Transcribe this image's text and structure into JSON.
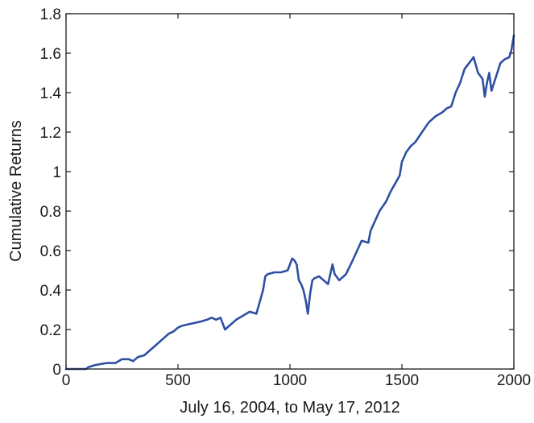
{
  "chart_data": {
    "type": "line",
    "xlabel": "July 16, 2004, to May 17, 2012",
    "ylabel": "Cumulative Returns",
    "xlim": [
      0,
      2000
    ],
    "ylim": [
      0,
      1.8
    ],
    "xticks": [
      0,
      500,
      1000,
      1500,
      2000
    ],
    "xtick_labels": [
      "0",
      "500",
      "1000",
      "1500",
      "2000"
    ],
    "yticks": [
      0,
      0.2,
      0.4,
      0.6,
      0.8,
      1,
      1.2,
      1.4,
      1.6,
      1.8
    ],
    "ytick_labels": [
      "0",
      "0.2",
      "0.4",
      "0.6",
      "0.8",
      "1",
      "1.2",
      "1.4",
      "1.6",
      "1.8"
    ],
    "grid": false,
    "colors": {
      "line": "#2f4fa3"
    },
    "series": [
      {
        "x": [
          0,
          90,
          100,
          130,
          180,
          220,
          250,
          280,
          300,
          320,
          350,
          380,
          400,
          430,
          460,
          480,
          500,
          520,
          560,
          600,
          630,
          650,
          670,
          690,
          710,
          730,
          760,
          790,
          820,
          850,
          870,
          880,
          890,
          900,
          930,
          960,
          990,
          1010,
          1020,
          1030,
          1040,
          1050,
          1060,
          1070,
          1080,
          1090,
          1100,
          1110,
          1130,
          1150,
          1170,
          1190,
          1200,
          1220,
          1250,
          1280,
          1300,
          1320,
          1350,
          1360,
          1380,
          1400,
          1430,
          1450,
          1470,
          1490,
          1500,
          1520,
          1540,
          1560,
          1590,
          1620,
          1650,
          1680,
          1700,
          1720,
          1740,
          1760,
          1780,
          1800,
          1820,
          1840,
          1860,
          1870,
          1880,
          1890,
          1900,
          1920,
          1940,
          1960,
          1980,
          1990,
          2000
        ],
        "y": [
          0,
          0,
          0.01,
          0.02,
          0.03,
          0.03,
          0.05,
          0.05,
          0.04,
          0.06,
          0.07,
          0.1,
          0.12,
          0.15,
          0.18,
          0.19,
          0.21,
          0.22,
          0.23,
          0.24,
          0.25,
          0.26,
          0.25,
          0.26,
          0.2,
          0.22,
          0.25,
          0.27,
          0.29,
          0.28,
          0.36,
          0.4,
          0.47,
          0.48,
          0.49,
          0.49,
          0.5,
          0.56,
          0.55,
          0.53,
          0.45,
          0.43,
          0.4,
          0.35,
          0.28,
          0.38,
          0.45,
          0.46,
          0.47,
          0.45,
          0.43,
          0.53,
          0.48,
          0.45,
          0.48,
          0.55,
          0.6,
          0.65,
          0.64,
          0.7,
          0.75,
          0.8,
          0.85,
          0.9,
          0.94,
          0.98,
          1.05,
          1.1,
          1.13,
          1.15,
          1.2,
          1.25,
          1.28,
          1.3,
          1.32,
          1.33,
          1.4,
          1.45,
          1.52,
          1.55,
          1.58,
          1.5,
          1.47,
          1.38,
          1.45,
          1.5,
          1.41,
          1.48,
          1.55,
          1.57,
          1.58,
          1.62,
          1.69
        ]
      }
    ]
  }
}
